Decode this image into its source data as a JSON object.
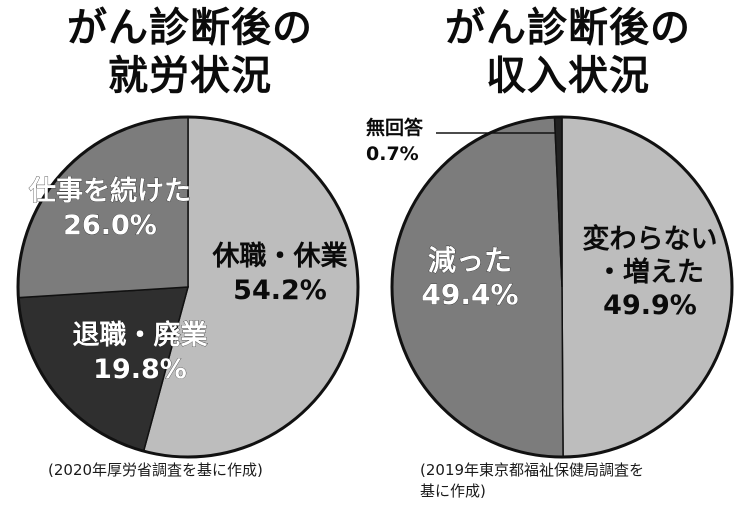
{
  "chart_data": [
    {
      "type": "pie",
      "title_lines": [
        "がん診断後の",
        "就労状況"
      ],
      "slices": [
        {
          "label": "休職・休業",
          "value": 54.2,
          "display": "54.2%",
          "color": "#bdbdbd"
        },
        {
          "label": "退職・廃業",
          "value": 19.8,
          "display": "19.8%",
          "color": "#2f2f2f"
        },
        {
          "label": "仕事を続けた",
          "value": 26.0,
          "display": "26.0%",
          "color": "#7c7c7c"
        }
      ],
      "source": "(2020年厚労省調査を基に作成)"
    },
    {
      "type": "pie",
      "title_lines": [
        "がん診断後の",
        "収入状況"
      ],
      "slices": [
        {
          "label": "変わらない・増えた",
          "label_lines": [
            "変わらない",
            "・増えた"
          ],
          "value": 49.9,
          "display": "49.9%",
          "color": "#bdbdbd"
        },
        {
          "label": "減った",
          "value": 49.4,
          "display": "49.4%",
          "color": "#7c7c7c"
        },
        {
          "label": "無回答",
          "value": 0.7,
          "display": "0.7%",
          "color": "#222222"
        }
      ],
      "source_lines": [
        "(2019年東京都福祉保健局調査を",
        "基に作成)"
      ]
    }
  ]
}
